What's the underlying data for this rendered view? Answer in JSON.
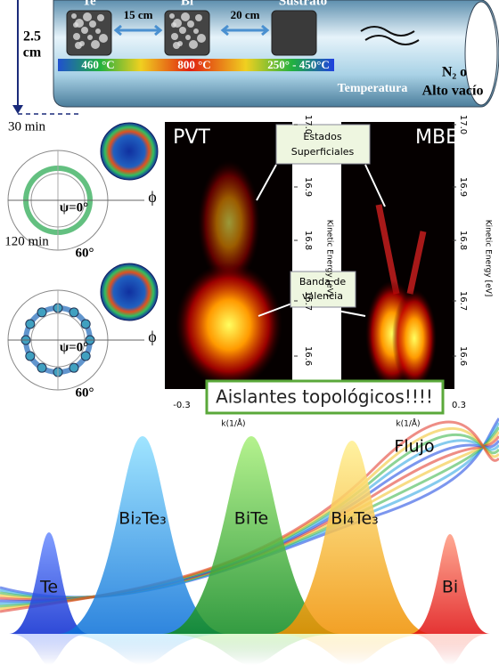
{
  "furnace": {
    "sources": [
      "Te",
      "Bi",
      "Sustrato"
    ],
    "distances": [
      "15 cm",
      "20 cm"
    ],
    "temperatures": [
      "460 °C",
      "800 °C",
      "250° - 450°C"
    ],
    "height": [
      "2.5",
      "cm"
    ],
    "atmosphere": [
      "N₂ o",
      "Alto vacío"
    ],
    "gradient_label": "Temperatura"
  },
  "diffraction": [
    {
      "time": "30 min",
      "psi": "ψ=0°",
      "phi": "ϕ",
      "angle": "60°"
    },
    {
      "time": "120 min",
      "psi": "ψ=0°",
      "phi": "ϕ",
      "angle": "60°"
    }
  ],
  "arpes": {
    "panels": [
      "PVT",
      "MBE"
    ],
    "callouts": [
      [
        "Estados",
        "Superficiales"
      ],
      [
        "Banda de",
        "valencia"
      ]
    ],
    "energy_ticks": [
      "17.0",
      "16.9",
      "16.8",
      "16.7",
      "16.6"
    ],
    "energy_label": "Kinetic Energy [eV]",
    "k_ticks": [
      "-0.3",
      "0.3"
    ],
    "k_label": "k(1/Å)",
    "banner": "Aislantes topológicos!!!!"
  },
  "phases": {
    "flow_label": "Flujo",
    "peaks": [
      "Te",
      "Bi₂Te₃",
      "BiTe",
      "Bi₄Te₃",
      "Bi"
    ]
  }
}
